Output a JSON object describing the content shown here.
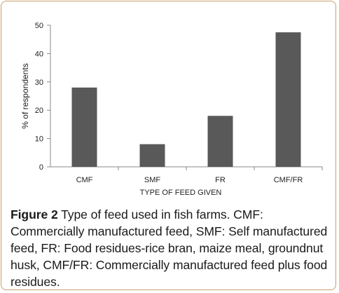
{
  "chart_data": {
    "type": "bar",
    "categories": [
      "CMF",
      "SMF",
      "FR",
      "CMF/FR"
    ],
    "values": [
      28,
      8,
      18,
      47.5
    ],
    "xlabel": "TYPE OF FEED GIVEN",
    "ylabel": "% of respondents",
    "ylim": [
      0,
      50
    ],
    "yticks": [
      0,
      10,
      20,
      30,
      40,
      50
    ],
    "bar_color": "#595959",
    "grid": false,
    "legend": "none"
  },
  "caption": {
    "label": "Figure 2",
    "text": " Type of feed used in fish farms. CMF: Commercially manufactured feed, SMF: Self manufactured feed, FR: Food residues-rice bran, maize meal, groundnut husk, CMF/FR: Commercially manufactured feed plus food residues."
  }
}
